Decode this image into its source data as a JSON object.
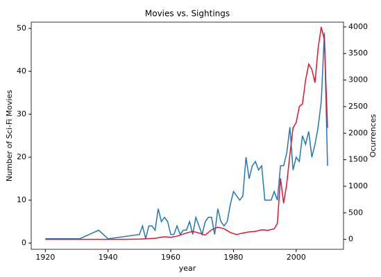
{
  "chart_data": {
    "type": "line",
    "title": "Movies vs. Sightings",
    "xlabel": "year",
    "ylabel": "Number of Sci-Fi Movies",
    "y2label": "Ocurrences",
    "xlim": [
      1915.5,
      2015.1
    ],
    "xticks": [
      1920,
      1940,
      1960,
      1980,
      2000
    ],
    "ylim": [
      -1.45,
      51.45
    ],
    "yticks": [
      0,
      10,
      20,
      30,
      40,
      50
    ],
    "y2lim": [
      -187,
      4090
    ],
    "y2ticks": [
      0,
      500,
      1000,
      1500,
      2000,
      2500,
      3000,
      3500,
      4000
    ],
    "series": [
      {
        "name": "Number of Sci-Fi Movies",
        "color": "#1f77b4",
        "axis": "y",
        "x": [
          1920,
          1931,
          1937,
          1940,
          1950,
          1951,
          1952,
          1953,
          1954,
          1955,
          1956,
          1957,
          1958,
          1959,
          1960,
          1961,
          1962,
          1963,
          1964,
          1965,
          1966,
          1967,
          1968,
          1969,
          1970,
          1971,
          1972,
          1973,
          1974,
          1975,
          1976,
          1977,
          1978,
          1979,
          1980,
          1981,
          1982,
          1983,
          1984,
          1985,
          1986,
          1987,
          1988,
          1989,
          1990,
          1991,
          1992,
          1993,
          1994,
          1995,
          1996,
          1997,
          1998,
          1999,
          2000,
          2001,
          2002,
          2003,
          2004,
          2005,
          2006,
          2007,
          2008,
          2009,
          2010
        ],
        "values": [
          1,
          1,
          3,
          1,
          2,
          4,
          1,
          4,
          4,
          3,
          8,
          5,
          6,
          5,
          2,
          2,
          4,
          2,
          3,
          3,
          5,
          2,
          6,
          4,
          2,
          5,
          6,
          6,
          2,
          8,
          5,
          4,
          5,
          9,
          12,
          11,
          10,
          11,
          20,
          15,
          18,
          19,
          17,
          18,
          10,
          10,
          10,
          12,
          10,
          18,
          18,
          21,
          27,
          17,
          20,
          19,
          25,
          23,
          26,
          20,
          23,
          27,
          33,
          49,
          18
        ]
      },
      {
        "name": "Ocurrences",
        "color": "#e8112d",
        "axis": "y2",
        "x": [
          1920,
          1930,
          1940,
          1945,
          1950,
          1955,
          1958,
          1960,
          1962,
          1965,
          1967,
          1969,
          1971,
          1973,
          1975,
          1977,
          1979,
          1981,
          1983,
          1985,
          1987,
          1989,
          1991,
          1993,
          1994,
          1995,
          1996,
          1997,
          1998,
          1999,
          2000,
          2001,
          2002,
          2003,
          2004,
          2005,
          2006,
          2007,
          2008,
          2009,
          2010
        ],
        "values": [
          0,
          0,
          0,
          0,
          5,
          20,
          50,
          40,
          60,
          120,
          150,
          120,
          80,
          180,
          230,
          200,
          130,
          90,
          120,
          140,
          150,
          180,
          170,
          200,
          300,
          1150,
          680,
          1050,
          1600,
          2100,
          2200,
          2500,
          2550,
          3000,
          3300,
          3200,
          2950,
          3600,
          4000,
          3750,
          2100
        ]
      }
    ]
  }
}
